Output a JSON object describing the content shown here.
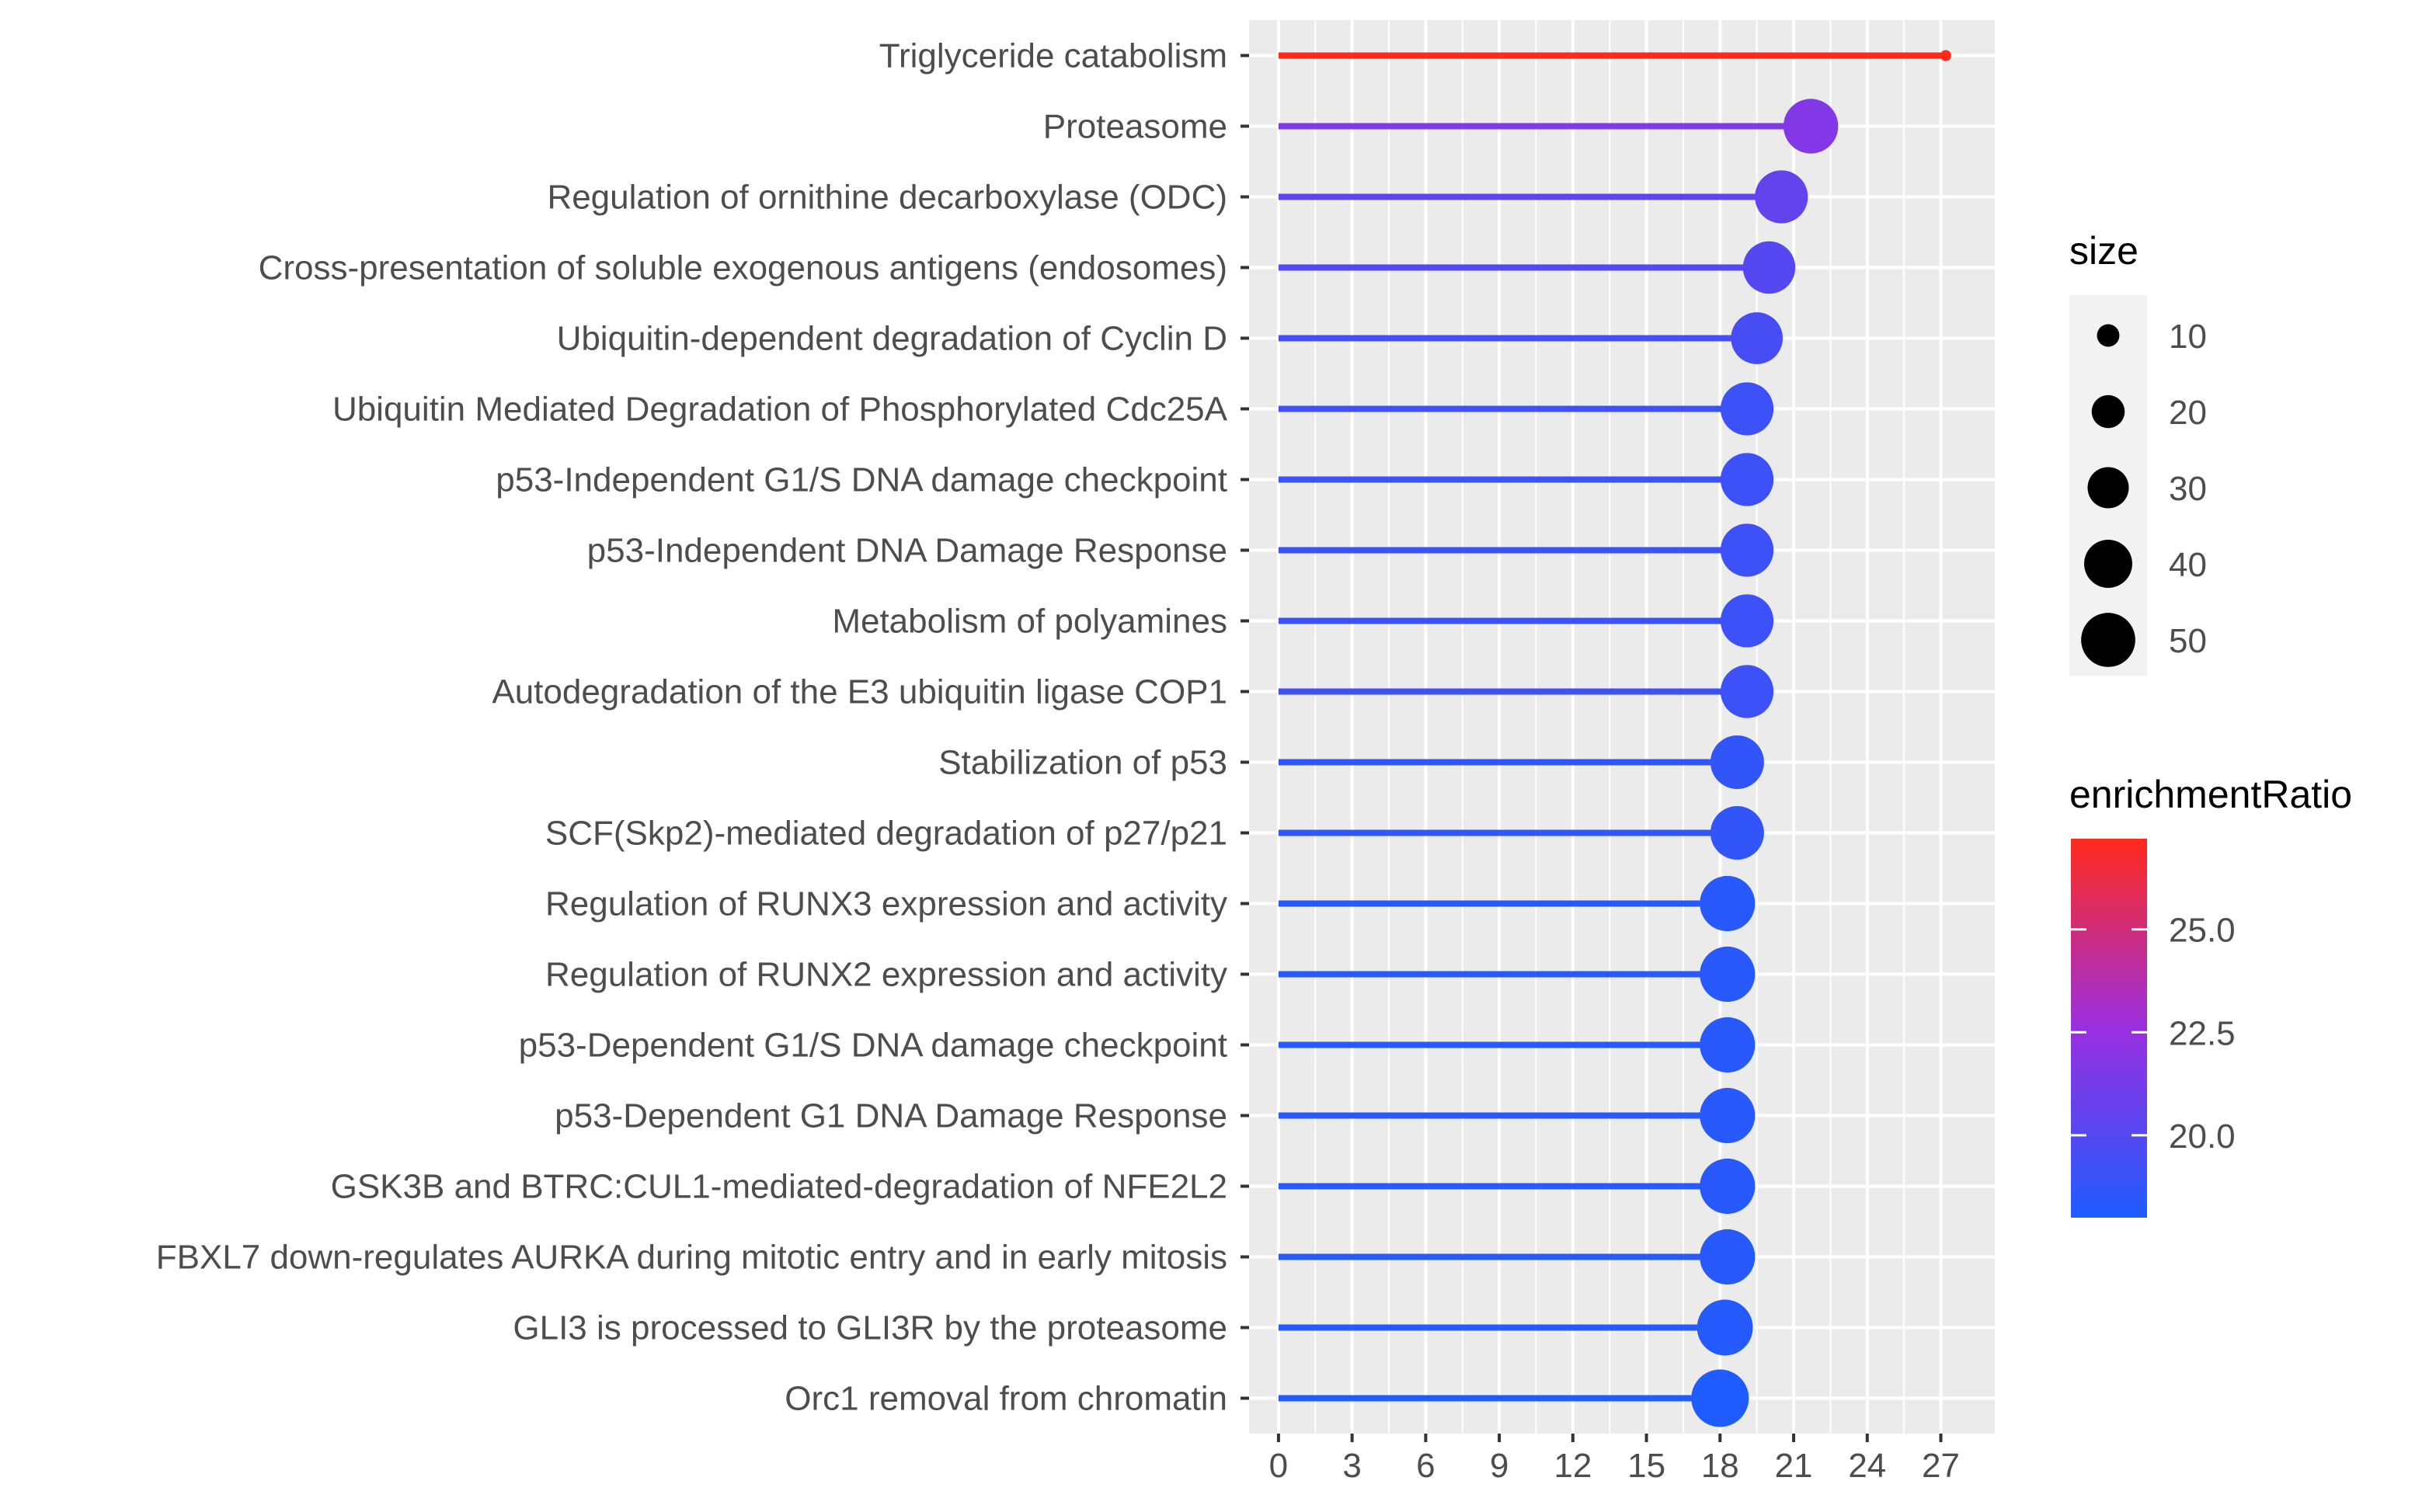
{
  "chart_data": {
    "type": "lollipop",
    "title": "",
    "xlabel": "",
    "ylabel": "",
    "xlim": [
      -1.2,
      29.2
    ],
    "x_ticks": [
      0,
      3,
      6,
      9,
      12,
      15,
      18,
      21,
      24,
      27
    ],
    "categories": [
      "Triglyceride catabolism",
      "Proteasome",
      "Regulation of ornithine decarboxylase (ODC)",
      "Cross-presentation of soluble exogenous antigens (endosomes)",
      "Ubiquitin-dependent degradation of Cyclin D",
      "Ubiquitin Mediated Degradation of Phosphorylated Cdc25A",
      "p53-Independent G1/S DNA damage checkpoint",
      "p53-Independent DNA Damage Response",
      "Metabolism of polyamines",
      "Autodegradation of the E3 ubiquitin ligase COP1",
      "Stabilization of p53",
      "SCF(Skp2)-mediated degradation of p27/p21",
      "Regulation of RUNX3 expression and activity",
      "Regulation of RUNX2 expression and activity",
      "p53-Dependent G1/S DNA damage checkpoint",
      "p53-Dependent G1 DNA Damage Response",
      "GSK3B and BTRC:CUL1-mediated-degradation of NFE2L2",
      "FBXL7 down-regulates AURKA during mitotic entry and in early mitosis",
      "GLI3 is processed to GLI3R by the proteasome",
      "Orc1 removal from chromatin"
    ],
    "values": [
      27.2,
      21.7,
      20.5,
      20.0,
      19.5,
      19.1,
      19.1,
      19.1,
      19.1,
      19.1,
      18.7,
      18.7,
      18.3,
      18.3,
      18.3,
      18.3,
      18.3,
      18.3,
      18.2,
      18.0
    ],
    "sizes": [
      3,
      51,
      48,
      47,
      46,
      48,
      48,
      48,
      48,
      48,
      49,
      49,
      52,
      52,
      52,
      52,
      52,
      52,
      53,
      56
    ],
    "size_legend": {
      "title": "size",
      "breaks": [
        10,
        20,
        30,
        40,
        50
      ],
      "labels": [
        "10",
        "20",
        "30",
        "40",
        "50"
      ]
    },
    "color_legend": {
      "title": "enrichmentRatio",
      "min": 18.0,
      "max": 27.2,
      "breaks": [
        25.0,
        22.5,
        20.0
      ],
      "labels": [
        "25.0",
        "22.5",
        "20.0"
      ]
    },
    "colors": {
      "low": "#1f5cff",
      "mid": "#9a2fe0",
      "high": "#ff2a1a",
      "panel": "#ebebeb",
      "grid": "#ffffff",
      "text": "#4d4d4d"
    }
  }
}
